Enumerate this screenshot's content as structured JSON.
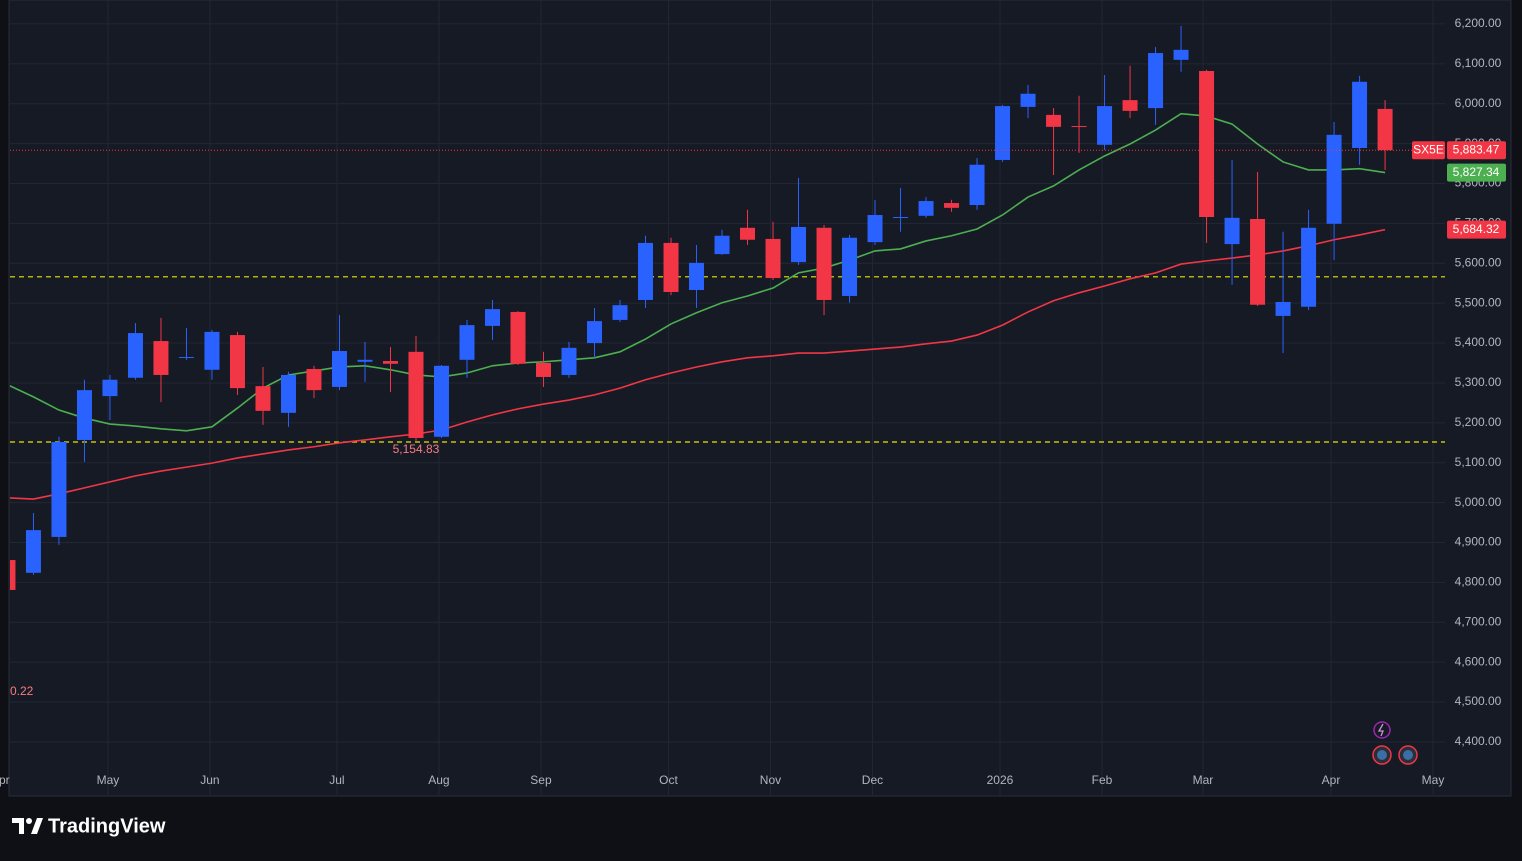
{
  "chart_data": {
    "type": "candlestick",
    "symbol": "SX5E",
    "up_color": "#2962ff",
    "down_color": "#f23645",
    "open": [
      4856,
      4824,
      4914,
      5157,
      5267,
      5313,
      5405,
      5363,
      5333,
      5420,
      5292,
      5225,
      5335,
      5290,
      5353,
      5355,
      5378,
      5165,
      5358,
      5443,
      5478,
      5350,
      5320,
      5400,
      5458,
      5508,
      5651,
      5533,
      5623,
      5689,
      5661,
      5603,
      5689,
      5518,
      5653,
      5714,
      5719,
      5751,
      5746,
      5859,
      5992,
      5972,
      5944,
      5897,
      6009,
      5989,
      6110,
      6082,
      5648,
      5711,
      5468,
      5491,
      5699,
      5889,
      5987
    ],
    "high": [
      4860,
      4974,
      5165,
      5308,
      5320,
      5450,
      5463,
      5438,
      5433,
      5428,
      5340,
      5328,
      5343,
      5470,
      5403,
      5390,
      5418,
      5345,
      5458,
      5508,
      5480,
      5378,
      5403,
      5488,
      5508,
      5669,
      5664,
      5646,
      5684,
      5734,
      5704,
      5814,
      5696,
      5671,
      5759,
      5789,
      5766,
      5759,
      5864,
      5997,
      6047,
      5989,
      6020,
      6072,
      6095,
      6142,
      6195,
      6085,
      5859,
      5829,
      5679,
      5734,
      5954,
      6070,
      6009
    ],
    "low": [
      4779,
      4819,
      4894,
      5102,
      5207,
      5308,
      5252,
      5358,
      5308,
      5270,
      5195,
      5190,
      5262,
      5282,
      5303,
      5277,
      5154.83,
      5162,
      5313,
      5408,
      5345,
      5290,
      5313,
      5363,
      5453,
      5488,
      5520,
      5488,
      5621,
      5646,
      5558,
      5596,
      5470,
      5501,
      5646,
      5679,
      5714,
      5729,
      5734,
      5854,
      5964,
      5821,
      5877,
      5884,
      5964,
      5947,
      6080,
      5651,
      5546,
      5493,
      5375,
      5483,
      5608,
      5847,
      5834
    ],
    "close": [
      4781,
      4931,
      5152,
      5282,
      5308,
      5425,
      5320,
      5365,
      5428,
      5287,
      5230,
      5320,
      5282,
      5380,
      5358,
      5348,
      5162,
      5343,
      5445,
      5485,
      5348,
      5315,
      5388,
      5455,
      5495,
      5651,
      5528,
      5601,
      5669,
      5659,
      5563,
      5691,
      5508,
      5664,
      5721,
      5716,
      5756,
      5739,
      5847,
      5994,
      6025,
      5942,
      5942,
      5994,
      5982,
      6127,
      6135,
      5716,
      5714,
      5496,
      5503,
      5689,
      5922,
      6055,
      5883.47
    ],
    "last_price_label": "5,883.47",
    "low_label": {
      "index": 16,
      "label": "5,154.83"
    },
    "left_label": "0.22",
    "series": [
      {
        "color": "#4caf50",
        "last_label": "5,827.34",
        "values": [
          5295,
          5265,
          5232,
          5212,
          5197,
          5192,
          5185,
          5180,
          5190,
          5237,
          5287,
          5320,
          5330,
          5340,
          5343,
          5333,
          5320,
          5315,
          5325,
          5343,
          5350,
          5353,
          5358,
          5363,
          5378,
          5410,
          5448,
          5476,
          5501,
          5518,
          5538,
          5576,
          5588,
          5608,
          5631,
          5636,
          5656,
          5669,
          5686,
          5721,
          5766,
          5794,
          5834,
          5869,
          5899,
          5934,
          5975,
          5969,
          5949,
          5899,
          5854,
          5834,
          5834,
          5837,
          5827.34
        ]
      },
      {
        "color": "#f23645",
        "last_label": "5,684.32",
        "values": [
          5012,
          5009,
          5022,
          5037,
          5052,
          5067,
          5079,
          5089,
          5099,
          5112,
          5122,
          5132,
          5140,
          5150,
          5157,
          5165,
          5172,
          5182,
          5202,
          5220,
          5235,
          5247,
          5257,
          5270,
          5287,
          5308,
          5325,
          5340,
          5353,
          5363,
          5368,
          5375,
          5375,
          5380,
          5385,
          5390,
          5398,
          5405,
          5420,
          5445,
          5478,
          5506,
          5526,
          5543,
          5561,
          5576,
          5598,
          5606,
          5613,
          5621,
          5631,
          5644,
          5659,
          5671,
          5684.32
        ]
      }
    ],
    "levels": [
      {
        "value": 5566,
        "color": "#e5e500"
      },
      {
        "value": 5152,
        "color": "#e5e500"
      }
    ],
    "ylim": [
      4267,
      6260
    ],
    "yticks": [
      {
        "value": 4400,
        "label": "4,400.00"
      },
      {
        "value": 4500,
        "label": "4,500.00"
      },
      {
        "value": 4600,
        "label": "4,600.00"
      },
      {
        "value": 4700,
        "label": "4,700.00"
      },
      {
        "value": 4800,
        "label": "4,800.00"
      },
      {
        "value": 4900,
        "label": "4,900.00"
      },
      {
        "value": 5000,
        "label": "5,000.00"
      },
      {
        "value": 5100,
        "label": "5,100.00"
      },
      {
        "value": 5200,
        "label": "5,200.00"
      },
      {
        "value": 5300,
        "label": "5,300.00"
      },
      {
        "value": 5400,
        "label": "5,400.00"
      },
      {
        "value": 5500,
        "label": "5,500.00"
      },
      {
        "value": 5600,
        "label": "5,600.00"
      },
      {
        "value": 5700,
        "label": "5,700.00"
      },
      {
        "value": 5800,
        "label": "5,800.00"
      },
      {
        "value": 5900,
        "label": "5,900.00"
      },
      {
        "value": 6000,
        "label": "6,000.00"
      },
      {
        "value": 6100,
        "label": "6,100.00"
      },
      {
        "value": 6200,
        "label": "6,200.00"
      }
    ],
    "xlim": [
      0.08,
      56.35
    ],
    "xticks": [
      {
        "value": -0.3,
        "label": "Apr"
      },
      {
        "value": 3.92,
        "label": "May"
      },
      {
        "value": 7.92,
        "label": "Jun"
      },
      {
        "value": 12.9,
        "label": "Jul"
      },
      {
        "value": 16.9,
        "label": "Aug"
      },
      {
        "value": 20.9,
        "label": "Sep"
      },
      {
        "value": 25.9,
        "label": "Oct"
      },
      {
        "value": 29.9,
        "label": "Nov"
      },
      {
        "value": 33.9,
        "label": "Dec"
      },
      {
        "value": 38.9,
        "label": "2026"
      },
      {
        "value": 42.9,
        "label": "Feb"
      },
      {
        "value": 46.86,
        "label": "Mar"
      },
      {
        "value": 51.88,
        "label": "Apr"
      },
      {
        "value": 55.88,
        "label": "May"
      }
    ],
    "grid": true,
    "footer": "TradingView"
  }
}
